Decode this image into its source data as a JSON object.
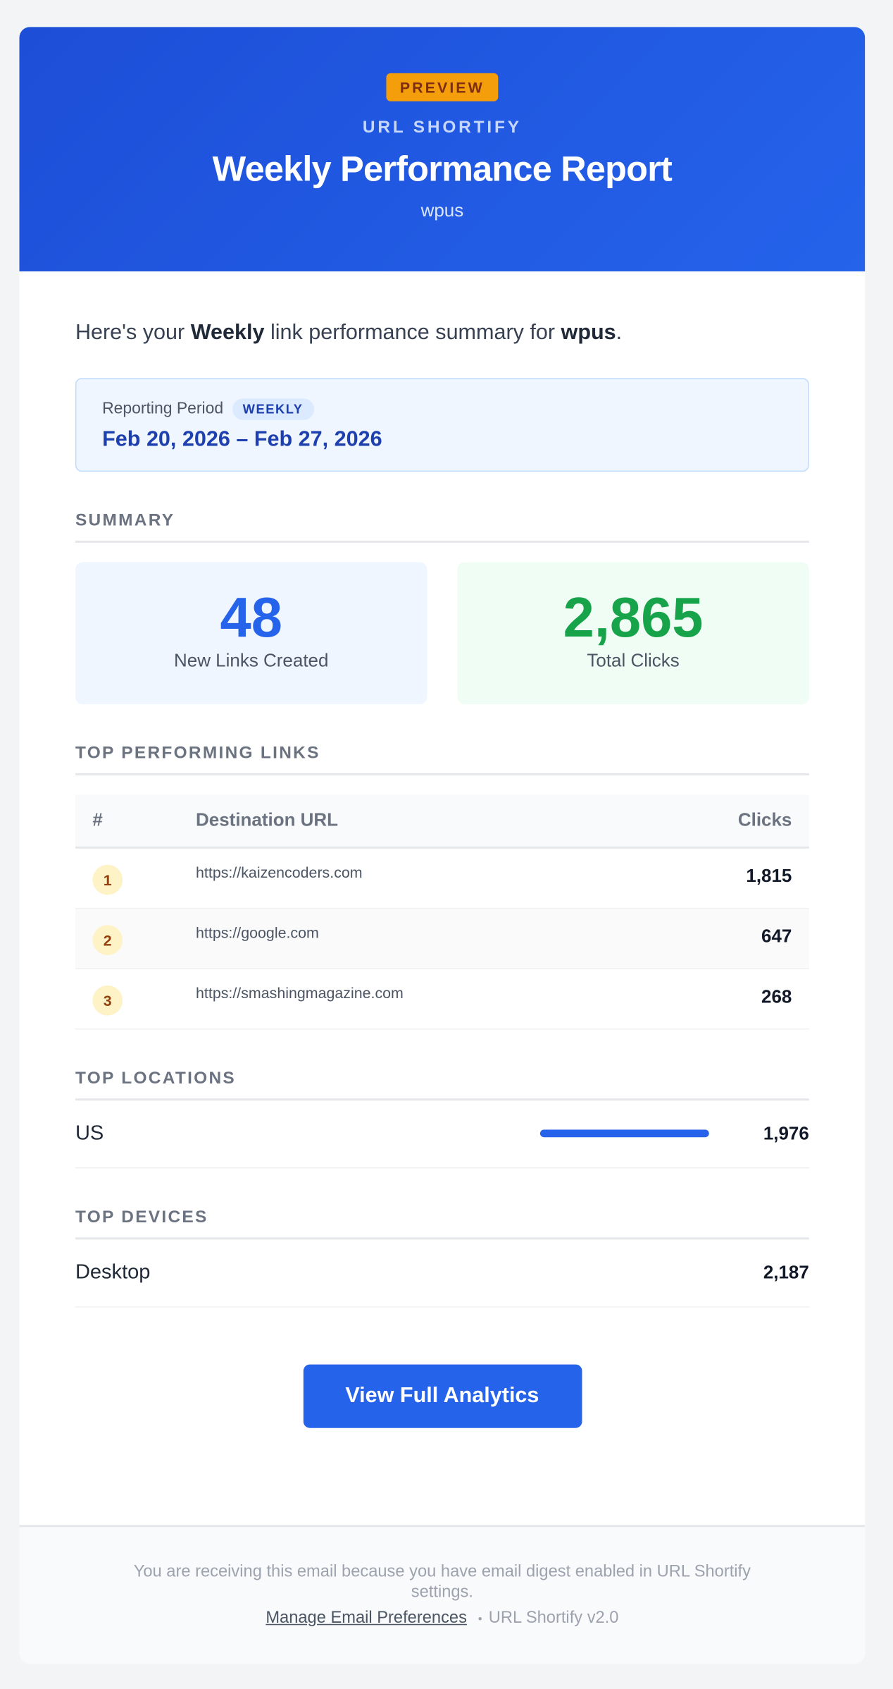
{
  "header": {
    "badge": "PREVIEW",
    "brand": "URL SHORTIFY",
    "title": "Weekly Performance Report",
    "site": "wpus"
  },
  "intro": [
    "Here's your ",
    "Weekly",
    " link performance summary for ",
    "wpus",
    "."
  ],
  "period": {
    "label": "Reporting Period",
    "tag": "WEEKLY",
    "range": "Feb 20, 2026 – Feb 27, 2026"
  },
  "summary": {
    "heading": "SUMMARY",
    "cards": [
      {
        "value": "48",
        "label": "New Links Created"
      },
      {
        "value": "2,865",
        "label": "Total Clicks"
      }
    ]
  },
  "top_links": {
    "heading": "TOP PERFORMING LINKS",
    "columns": [
      "#",
      "Destination URL",
      "Clicks"
    ],
    "rows": [
      [
        "1",
        "https://kaizencoders.com",
        "1,815"
      ],
      [
        "2",
        "https://google.com",
        "647"
      ],
      [
        "3",
        "https://smashingmagazine.com",
        "268"
      ]
    ]
  },
  "locations": {
    "heading": "TOP LOCATIONS",
    "rows": [
      {
        "name": "US",
        "clicks": "1,976"
      }
    ]
  },
  "devices": {
    "heading": "TOP DEVICES",
    "rows": [
      {
        "name": "Desktop",
        "clicks": "2,187"
      }
    ]
  },
  "button": "View Full Analytics",
  "footer": {
    "notice": "You are receiving this email because you have email digest enabled in URL Shortify settings.",
    "link": "Manage Email Preferences",
    "separator": "•",
    "version": "URL Shortify v2.0"
  }
}
